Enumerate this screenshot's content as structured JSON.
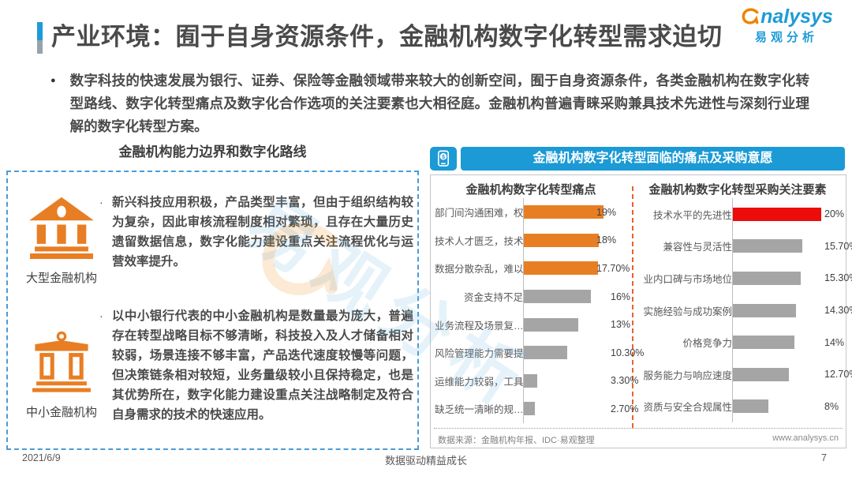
{
  "header": {
    "title": "产业环境：囿于自身资源条件，金融机构数字化转型需求迫切",
    "bullet_text": "数字科技的快速发展为银行、证券、保险等金融领域带来较大的创新空间，囿于自身资源条件，各类金融机构在数字化转型路线、数字化转型痛点及数字化合作选项的关注要素也大相径庭。金融机构普遍青睐采购兼具技术先进性与深刻行业理解的数字化转型方案。",
    "logo": {
      "brand_en": "nalysys",
      "brand_cn": "易观分析"
    }
  },
  "left_panel": {
    "title": "金融机构能力边界和数字化路线",
    "items": [
      {
        "label": "大型金融机构",
        "icon": "bank-solid-icon",
        "bullet": "·",
        "text": "新兴科技应用积极，产品类型丰富，但由于组织结构较为复杂，因此审核流程制度相对繁琐，且存在大量历史遗留数据信息，数字化能力建设重点关注流程优化与运营效率提升。"
      },
      {
        "label": "中小金融机构",
        "icon": "bank-outline-icon",
        "bullet": "·",
        "text": "以中小银行代表的中小金融机构是数量最为庞大，普遍存在转型战略目标不够清晰，科技投入及人才储备相对较弱，场景连接不够丰富，产品迭代速度较慢等问题，但决策链条相对较短，业务量级较小且保持稳定，也是其优势所在，数字化能力建设重点关注战略制定及符合自身需求的技术的快速应用。"
      }
    ]
  },
  "right_panel": {
    "banner": "金融机构数字化转型面临的痛点及采购意愿",
    "banner_icon": "mobile-payment-icon",
    "source_note": "数据来源：金融机构年报、IDC·易观整理",
    "website": "www.analysys.cn"
  },
  "chart_data": [
    {
      "type": "bar",
      "orientation": "horizontal",
      "title": "金融机构数字化转型痛点",
      "categories": [
        "部门间沟通困难，权…",
        "技术人才匮乏，技术…",
        "数据分散杂乱，难以…",
        "资金支持不足",
        "业务流程及场景复…",
        "风险管理能力需要提高",
        "运维能力较弱，工具…",
        "缺乏统一清晰的规…"
      ],
      "values": [
        19,
        18,
        17.7,
        16,
        13,
        10.3,
        3.3,
        2.7
      ],
      "value_labels": [
        "19%",
        "18%",
        "17.70%",
        "16%",
        "13%",
        "10.30%",
        "3.30%",
        "2.70%"
      ],
      "bar_colors": [
        "#e87e23",
        "#e87e23",
        "#e87e23",
        "#a5a5a5",
        "#a5a5a5",
        "#a5a5a5",
        "#a5a5a5",
        "#a5a5a5"
      ],
      "xlim": [
        0,
        20
      ],
      "grid": false,
      "legend": false,
      "overlap_first_n": 3
    },
    {
      "type": "bar",
      "orientation": "horizontal",
      "title": "金融机构数字化转型采购关注要素",
      "categories": [
        "技术水平的先进性",
        "兼容性与灵活性",
        "业内口碑与市场地位",
        "实施经验与成功案例",
        "价格竞争力",
        "服务能力与响应速度",
        "资质与安全合规属性"
      ],
      "values": [
        20,
        15.7,
        15.3,
        14.3,
        14,
        12.7,
        8
      ],
      "value_labels": [
        "20%",
        "15.70%",
        "15.30%",
        "14.30%",
        "14%",
        "12.70%",
        "8%"
      ],
      "bar_colors": [
        "#ed0c0c",
        "#a5a5a5",
        "#a5a5a5",
        "#a5a5a5",
        "#a5a5a5",
        "#a5a5a5",
        "#a5a5a5"
      ],
      "xlim": [
        0,
        20
      ],
      "grid": false,
      "legend": false,
      "overlap_first_n": 0
    }
  ],
  "watermark": {
    "text": "易观分析"
  },
  "footer": {
    "date": "2021/6/9",
    "center": "数据驱动精益成长",
    "page": "7"
  },
  "colors": {
    "accent_blue": "#1b9ad6",
    "bar_orange": "#e87e23",
    "bar_red": "#ed0c0c",
    "bar_gray": "#a5a5a5",
    "divider_orange": "#e8622d",
    "panel_dash_blue": "#4a9cd6"
  }
}
